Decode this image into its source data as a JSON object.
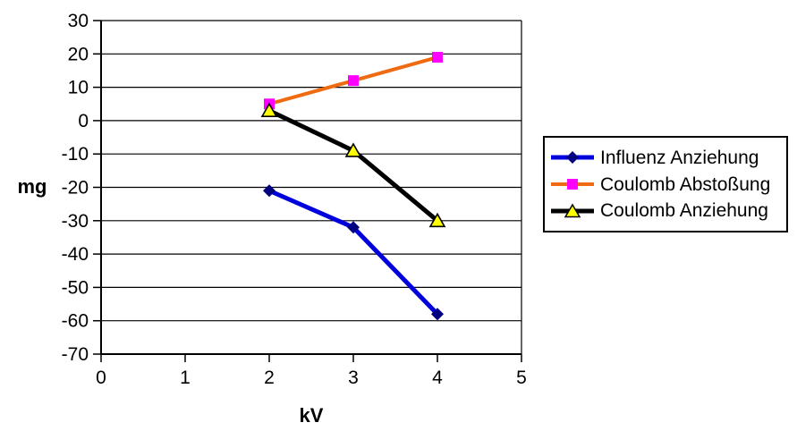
{
  "chart_data": {
    "type": "line",
    "title": "",
    "xlabel": "kV",
    "ylabel": "mg",
    "x": [
      2,
      3,
      4
    ],
    "series": [
      {
        "name": "Influenz Anziehung",
        "values": [
          -21,
          -32,
          -58
        ],
        "line_color": "#0000DD",
        "marker": "diamond",
        "marker_color": "#000080"
      },
      {
        "name": "Coulomb Abstoßung",
        "values": [
          5,
          12,
          19
        ],
        "line_color": "#EF6A10",
        "marker": "square",
        "marker_color": "#FF00FF"
      },
      {
        "name": "Coulomb Anziehung",
        "values": [
          3,
          -9,
          -30
        ],
        "line_color": "#000000",
        "marker": "triangle",
        "marker_color": "#FFFF00"
      }
    ],
    "xlim": [
      0,
      5
    ],
    "ylim": [
      -70,
      30
    ],
    "x_ticks": [
      0,
      1,
      2,
      3,
      4,
      5
    ],
    "y_ticks": [
      30,
      20,
      10,
      0,
      -10,
      -20,
      -30,
      -40,
      -50,
      -60,
      -70
    ],
    "grid": "horizontal gridlines on",
    "legend_position": "right",
    "background": "#FFFFFF",
    "axis_color": "#000000"
  }
}
